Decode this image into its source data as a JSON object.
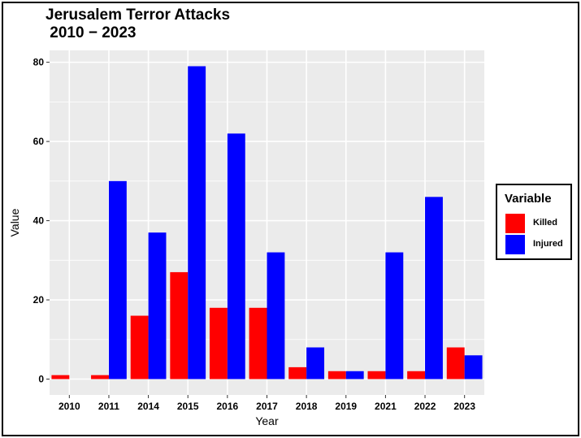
{
  "chart_data": {
    "type": "bar",
    "title": "Jerusalem Terror Attacks\n 2010 − 2023",
    "xlabel": "Year",
    "ylabel": "Value",
    "categories": [
      "2010",
      "2011",
      "2014",
      "2015",
      "2016",
      "2017",
      "2018",
      "2019",
      "2021",
      "2022",
      "2023"
    ],
    "series": [
      {
        "name": "Killed",
        "color": "#ff0000",
        "values": [
          1,
          1,
          16,
          27,
          18,
          18,
          3,
          2,
          2,
          2,
          8
        ]
      },
      {
        "name": "Injured",
        "color": "#0000ff",
        "values": [
          0,
          50,
          37,
          79,
          62,
          32,
          8,
          2,
          32,
          46,
          6
        ]
      }
    ],
    "ylim": [
      -4,
      83
    ],
    "yticks": [
      0,
      20,
      40,
      60,
      80
    ],
    "grid": true,
    "legend": {
      "title": "Variable",
      "position": "right"
    },
    "panel_background": "#ebebeb"
  }
}
